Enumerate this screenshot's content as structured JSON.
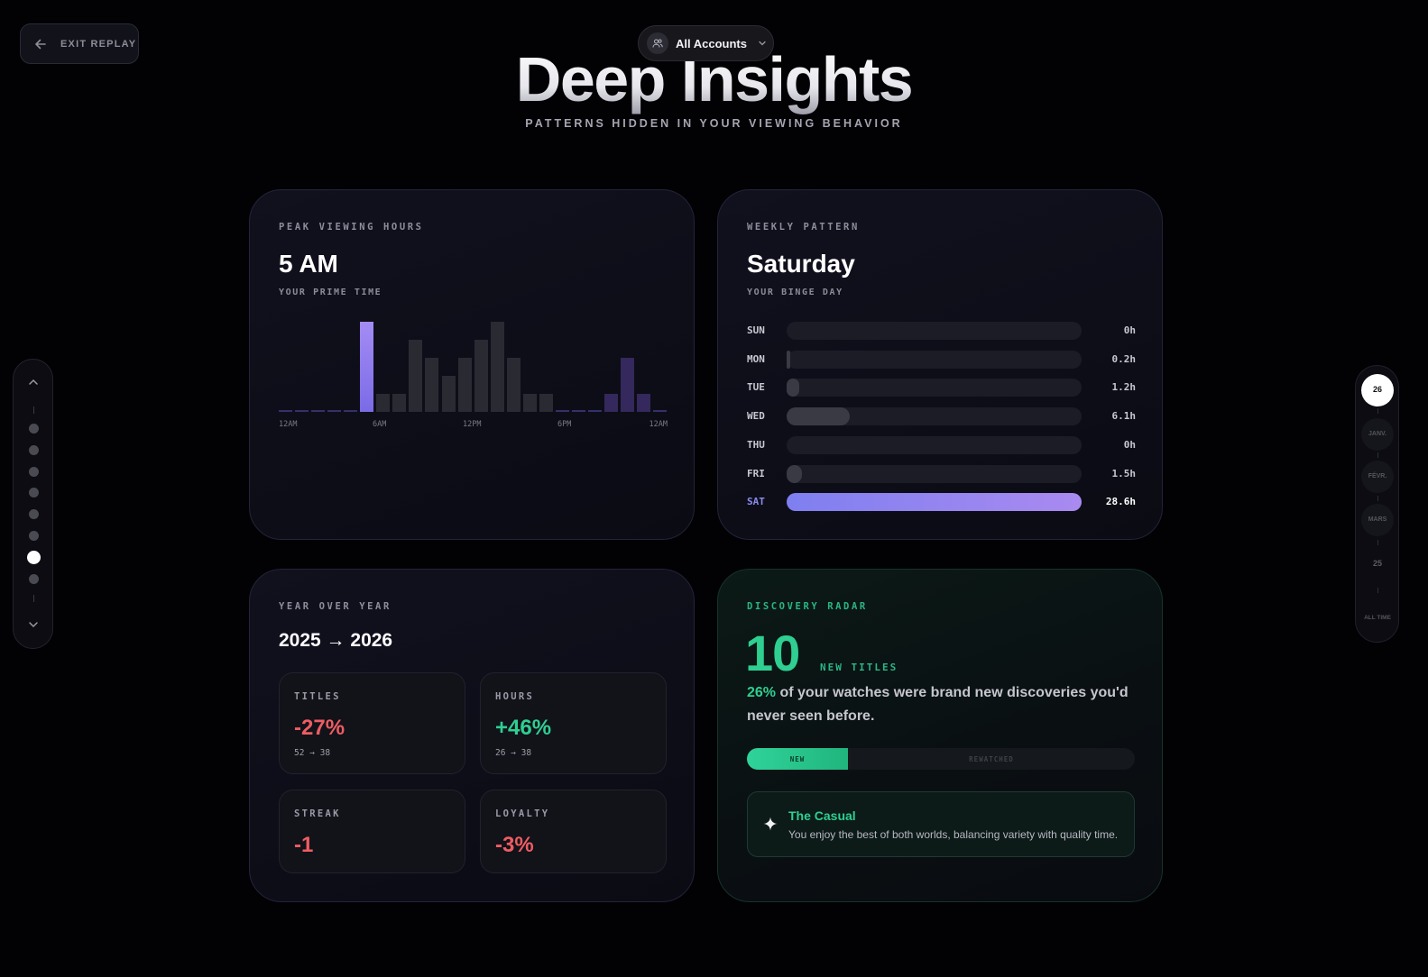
{
  "header": {
    "exit_label": "EXIT REPLAY",
    "accounts_label": "All Accounts",
    "title": "Deep Insights",
    "subtitle": "PATTERNS HIDDEN IN YOUR VIEWING BEHAVIOR"
  },
  "left_nav": {
    "dot_count": 8,
    "active_index": 6
  },
  "right_nav": {
    "items": [
      "26",
      "JANV.",
      "FÉVR.",
      "MARS",
      "25",
      "ALL TIME"
    ],
    "active": "26"
  },
  "peak": {
    "label": "PEAK VIEWING HOURS",
    "value": "5 AM",
    "sub": "YOUR PRIME TIME",
    "axis_labels": [
      "12AM",
      "6AM",
      "12PM",
      "6PM",
      "12AM"
    ],
    "chart_data": {
      "type": "bar",
      "categories": [
        "0",
        "1",
        "2",
        "3",
        "4",
        "5",
        "6",
        "7",
        "8",
        "9",
        "10",
        "11",
        "12",
        "13",
        "14",
        "15",
        "16",
        "17",
        "18",
        "19",
        "20",
        "21",
        "22",
        "23"
      ],
      "values": [
        0.02,
        0.02,
        0.02,
        0.02,
        0.02,
        1.0,
        0.2,
        0.2,
        0.8,
        0.6,
        0.4,
        0.6,
        0.8,
        1.0,
        0.6,
        0.2,
        0.2,
        0.02,
        0.02,
        0.02,
        0.2,
        0.6,
        0.2,
        0.02
      ],
      "highlight_index": 5,
      "title": "PEAK VIEWING HOURS"
    }
  },
  "weekly": {
    "label": "WEEKLY PATTERN",
    "value": "Saturday",
    "sub": "YOUR BINGE DAY",
    "chart_data": {
      "type": "bar",
      "categories": [
        "SUN",
        "MON",
        "TUE",
        "WED",
        "THU",
        "FRI",
        "SAT"
      ],
      "values": [
        0,
        0.2,
        1.2,
        6.1,
        0,
        1.5,
        28.6
      ],
      "value_labels": [
        "0h",
        "0.2h",
        "1.2h",
        "6.1h",
        "0h",
        "1.5h",
        "28.6h"
      ],
      "highlight": "SAT"
    }
  },
  "yoy": {
    "label": "YEAR OVER YEAR",
    "value": "2025 → 2026",
    "tiles": [
      {
        "label": "TITLES",
        "value": "-27%",
        "detail": "52 → 38",
        "tone": "neg"
      },
      {
        "label": "HOURS",
        "value": "+46%",
        "detail": "26 → 38",
        "tone": "pos"
      },
      {
        "label": "STREAK",
        "value": "-1",
        "detail": "",
        "tone": "neg"
      },
      {
        "label": "LOYALTY",
        "value": "-3%",
        "detail": "",
        "tone": "neg"
      }
    ]
  },
  "discovery": {
    "label": "DISCOVERY RADAR",
    "count": "10",
    "unit": "NEW TITLES",
    "pct": "26%",
    "text": " of your watches were brand new discoveries you'd never seen before.",
    "new_label": "NEW",
    "rewatched_label": "REWATCHED",
    "new_fraction": 0.26,
    "persona_name": "The Casual",
    "persona_desc": "You enjoy the best of both worlds, balancing variety with quality time."
  },
  "colors": {
    "accent_purple": "#8b8bf0",
    "accent_green": "#2ecf91",
    "negative": "#ee5d62"
  }
}
